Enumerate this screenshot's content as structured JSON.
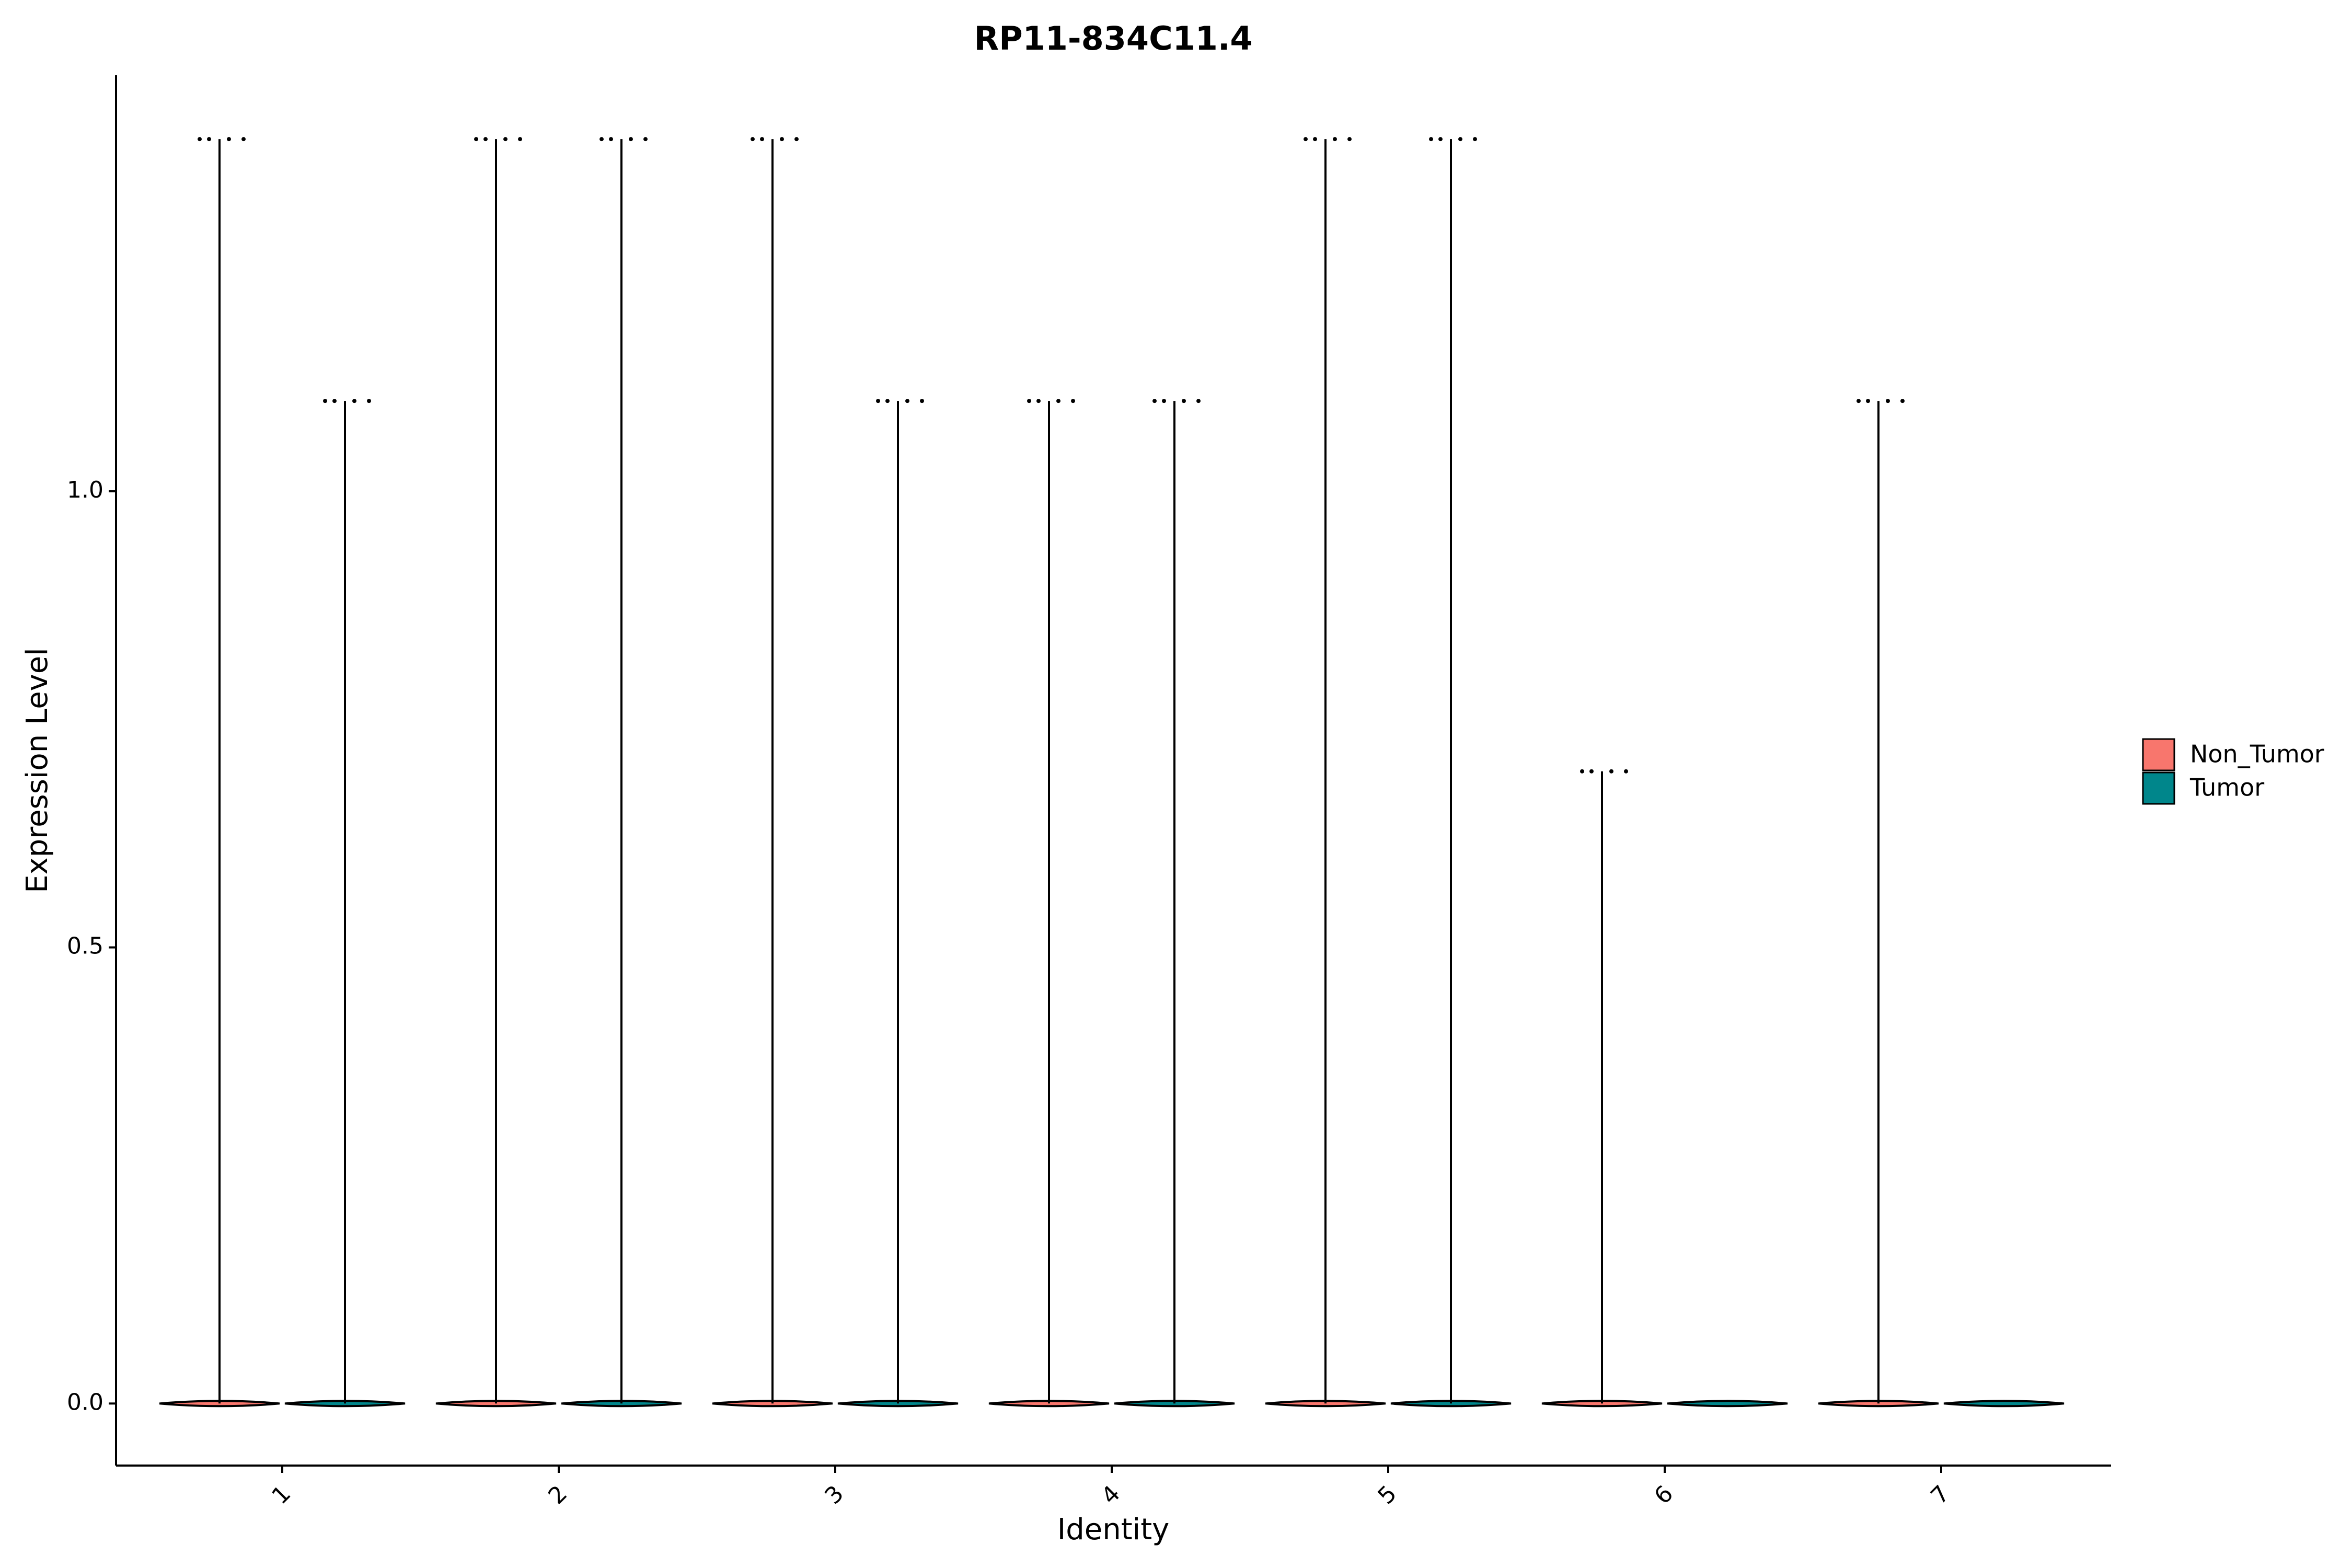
{
  "chart_data": {
    "type": "violin",
    "title": "RP11-834C11.4",
    "x_label": "Identity",
    "y_label": "Expression Level",
    "categories": [
      "1",
      "2",
      "3",
      "4",
      "5",
      "6",
      "7"
    ],
    "series": [
      {
        "name": "Non_Tumor",
        "color": "#F8766D",
        "values": [
          1.386,
          1.386,
          1.386,
          1.099,
          1.386,
          0.693,
          1.099
        ]
      },
      {
        "name": "Tumor",
        "color": "#00868B",
        "values": [
          1.099,
          1.386,
          1.099,
          1.099,
          1.386,
          0,
          0
        ]
      }
    ],
    "ylim": [
      -0.068,
      1.456
    ],
    "yticks": [
      {
        "value": 0,
        "label": "0.0"
      },
      {
        "value": 0.5,
        "label": "0.5"
      },
      {
        "value": 1,
        "label": "1.0"
      }
    ],
    "grid": false,
    "legend": "right"
  }
}
